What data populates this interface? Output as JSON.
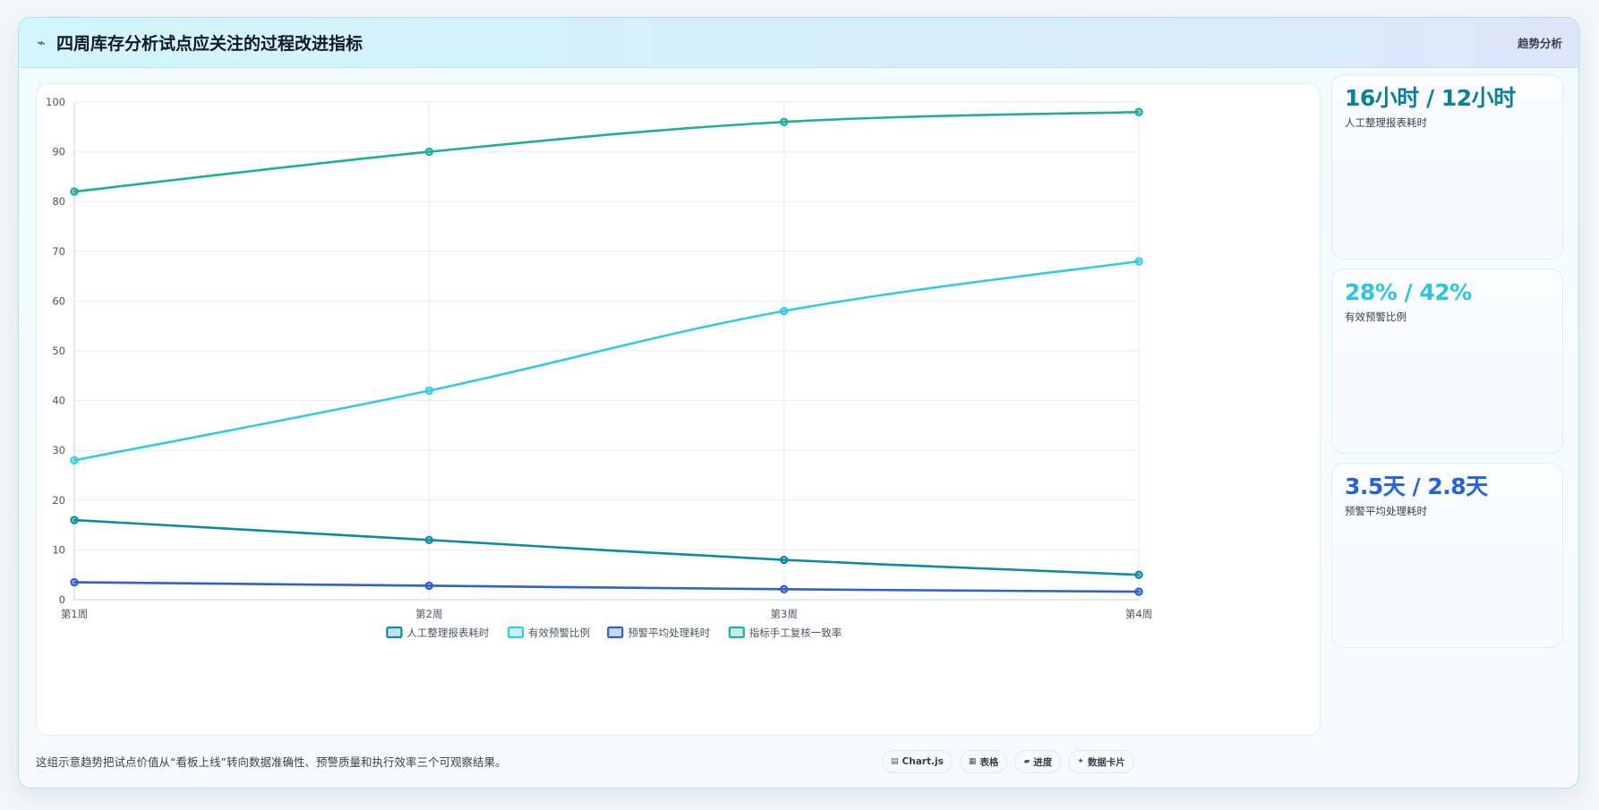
{
  "header": {
    "title": "四周库存分析试点应关注的过程改进指标",
    "right_label": "趋势分析",
    "icon": "trend-line-icon"
  },
  "chart_data": {
    "type": "line",
    "categories": [
      "第1周",
      "第2周",
      "第3周",
      "第4周"
    ],
    "ylim": [
      0,
      100
    ],
    "yticks": [
      0,
      10,
      20,
      30,
      40,
      50,
      60,
      70,
      80,
      90,
      100
    ],
    "grid": true,
    "legend_position": "bottom",
    "series": [
      {
        "name": "人工整理报表耗时",
        "values": [
          16,
          12,
          8,
          5
        ],
        "color": "#0e8aa3"
      },
      {
        "name": "有效预警比例",
        "values": [
          28,
          42,
          58,
          68
        ],
        "color": "#35cbe0"
      },
      {
        "name": "预警平均处理耗时",
        "values": [
          3.5,
          2.8,
          2.1,
          1.6
        ],
        "color": "#2f5fd0"
      },
      {
        "name": "指标手工复核一致率",
        "values": [
          82,
          90,
          96,
          98
        ],
        "color": "#1fae9a"
      }
    ]
  },
  "kpis": [
    {
      "value": "16小时 / 12小时",
      "label": "人工整理报表耗时",
      "color": "#0e7f99"
    },
    {
      "value": "28% / 42%",
      "label": "有效预警比例",
      "color": "#2fc6dd"
    },
    {
      "value": "3.5天 / 2.8天",
      "label": "预警平均处理耗时",
      "color": "#2563d8"
    }
  ],
  "footer": {
    "note": "这组示意趋势把试点价值从“看板上线”转向数据准确性、预警质量和执行效率三个可观察结果。",
    "pills": [
      {
        "icon": "chart-icon",
        "glyph": "▤",
        "label": "Chart.js"
      },
      {
        "icon": "table-icon",
        "glyph": "▦",
        "label": "表格"
      },
      {
        "icon": "progress-icon",
        "glyph": "▰",
        "label": "进度"
      },
      {
        "icon": "data-card-icon",
        "glyph": "✦",
        "label": "数据卡片"
      }
    ]
  }
}
